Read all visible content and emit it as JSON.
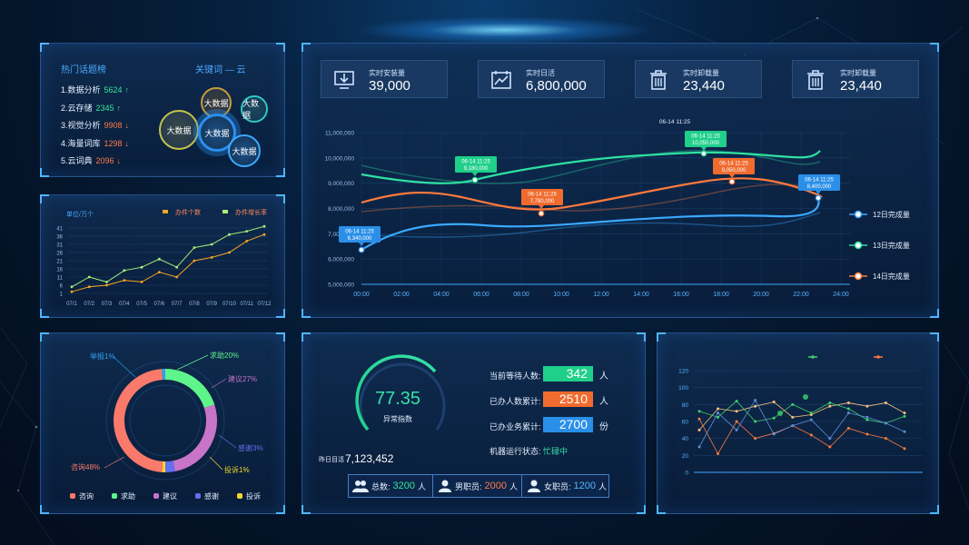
{
  "hot_topics": {
    "title": "热门话题榜",
    "items": [
      {
        "label": "1.数据分析",
        "value": "5624",
        "trend": "↑",
        "dir": "up"
      },
      {
        "label": "2.云存储",
        "value": "2345",
        "trend": "↑",
        "dir": "up"
      },
      {
        "label": "3.视觉分析",
        "value": "9908",
        "trend": "↓",
        "dir": "down"
      },
      {
        "label": "4.海量词库",
        "value": "1298",
        "trend": "↓",
        "dir": "down"
      },
      {
        "label": "5.云词典",
        "value": "2096",
        "trend": "↓",
        "dir": "down"
      }
    ],
    "keyword_title": "关键词 — 云",
    "bubbles": [
      "大数据",
      "大数据",
      "大数据",
      "大数据",
      "大数据"
    ]
  },
  "small_line": {
    "unit": "单位/万个",
    "legend": [
      "办件个数",
      "办件增长率"
    ],
    "colors": [
      "#f6a623",
      "#a8f07a"
    ],
    "yticks": [
      "41",
      "36",
      "31",
      "26",
      "21",
      "16",
      "11",
      "6",
      "1"
    ],
    "categories": [
      "07/1",
      "07/2",
      "07/3",
      "07/4",
      "07/5",
      "07/6",
      "07/7",
      "07/8",
      "07/9",
      "07/10",
      "07/11",
      "07/12"
    ],
    "series": [
      {
        "name": "办件个数",
        "values": [
          2,
          5,
          6,
          9,
          8,
          14,
          11,
          21,
          23,
          26,
          33,
          37
        ]
      },
      {
        "name": "办件增长率",
        "values": [
          5,
          11,
          8,
          15,
          17,
          22,
          17,
          29,
          31,
          37,
          39,
          42
        ]
      }
    ]
  },
  "donut": {
    "labels_outer": [
      "举报1%",
      "求助20%",
      "建议27%",
      "感谢3%",
      "投诉1%",
      "咨询48%"
    ],
    "legend": [
      "咨询",
      "求助",
      "建议",
      "感谢",
      "投诉"
    ],
    "slices": [
      {
        "name": "求助",
        "value": 20,
        "color": "#5ef58a"
      },
      {
        "name": "建议",
        "value": 27,
        "color": "#c874c8"
      },
      {
        "name": "感谢",
        "value": 3,
        "color": "#6070f0"
      },
      {
        "name": "投诉",
        "value": 1,
        "color": "#f5d62a"
      },
      {
        "name": "咨询",
        "value": 48,
        "color": "#f97a6b"
      },
      {
        "name": "举报",
        "value": 1,
        "color": "#2ba0ee"
      }
    ]
  },
  "stats": [
    {
      "label": "实时安装量",
      "value": "39,000",
      "icon": "install-icon"
    },
    {
      "label": "实时日活",
      "value": "6,800,000",
      "icon": "chart-icon"
    },
    {
      "label": "实时卸载量",
      "value": "23,440",
      "icon": "trash-icon"
    },
    {
      "label": "实时卸载量",
      "value": "23,440",
      "icon": "trash-icon"
    }
  ],
  "chart_data": [
    {
      "type": "line",
      "x": [
        "00:00",
        "02:00",
        "04:00",
        "06:00",
        "08:00",
        "10:00",
        "12:00",
        "14:00",
        "16:00",
        "18:00",
        "20:00",
        "22:00",
        "24:00"
      ],
      "ylabels": [
        "11,000,000",
        "10,000,000",
        "9,000,000",
        "8,000,000",
        "7,000,000",
        "6,000,000",
        "5,000,000"
      ],
      "ylim": [
        5000000,
        11000000
      ],
      "series": [
        {
          "name": "12日完成量",
          "color": "#3ba9ff"
        },
        {
          "name": "13日完成量",
          "color": "#2fe0a0"
        },
        {
          "name": "14日完成量",
          "color": "#ff7a3d"
        }
      ],
      "callouts": [
        {
          "time": "06-14 11:25",
          "value": "6,340,000",
          "color": "#2a8fe8"
        },
        {
          "time": "06-14 11:25",
          "value": "9,180,000",
          "color": "#1fcf8a"
        },
        {
          "time": "06-14 11:25",
          "value": "7,780,000",
          "color": "#f06b2e"
        },
        {
          "time": "06-14 11:25",
          "value": "10,050,000",
          "color": "#1fcf8a"
        },
        {
          "time": "06-14 11:25",
          "value": "9,050,000",
          "color": "#f06b2e"
        },
        {
          "time": "06-14 11:25",
          "value": "8,400,000",
          "color": "#2a8fe8"
        }
      ],
      "top_label": "06-14 11:25"
    }
  ],
  "gauge": {
    "value": "77.35",
    "label": "异常指数",
    "yesterday_label": "昨日目活",
    "yesterday_value": "7,123,452",
    "metrics": [
      {
        "label": "当前等待人数:",
        "value": "342",
        "unit": "人",
        "color": "#1fcf8a"
      },
      {
        "label": "已办人数累计:",
        "value": "2510",
        "unit": "人",
        "color": "#f06b2e"
      },
      {
        "label": "已办业务累计:",
        "value": "2700",
        "unit": "份",
        "color": "#2a8fe8"
      }
    ],
    "machine_label": "机器运行状态:",
    "machine_status": "忙碌中",
    "bottom": [
      {
        "label": "总数:",
        "value": "3200",
        "unit": "人",
        "color": "#34e59a"
      },
      {
        "label": "男职员:",
        "value": "2000",
        "unit": "人",
        "color": "#ff7b4a"
      },
      {
        "label": "女职员:",
        "value": "1200",
        "unit": "人",
        "color": "#5ab4ff"
      }
    ]
  },
  "right_chart": {
    "yticks": [
      "120",
      "100",
      "80",
      "60",
      "40",
      "20",
      "0"
    ],
    "legend_colors": [
      "#3fd16a",
      "#ff7a3d"
    ],
    "series": [
      {
        "color": "#f6c27a",
        "values": [
          50,
          75,
          72,
          78,
          83,
          65,
          68,
          78,
          82,
          78,
          82,
          70
        ]
      },
      {
        "color": "#3fd16a",
        "values": [
          72,
          65,
          84,
          60,
          64,
          80,
          70,
          82,
          75,
          62,
          58,
          66
        ]
      },
      {
        "color": "#ff7a3d",
        "values": [
          63,
          22,
          60,
          40,
          46,
          55,
          44,
          30,
          52,
          45,
          40,
          28
        ]
      },
      {
        "color": "#5a8fd8",
        "values": [
          30,
          70,
          50,
          85,
          45,
          55,
          62,
          40,
          70,
          65,
          58,
          48
        ]
      }
    ]
  }
}
